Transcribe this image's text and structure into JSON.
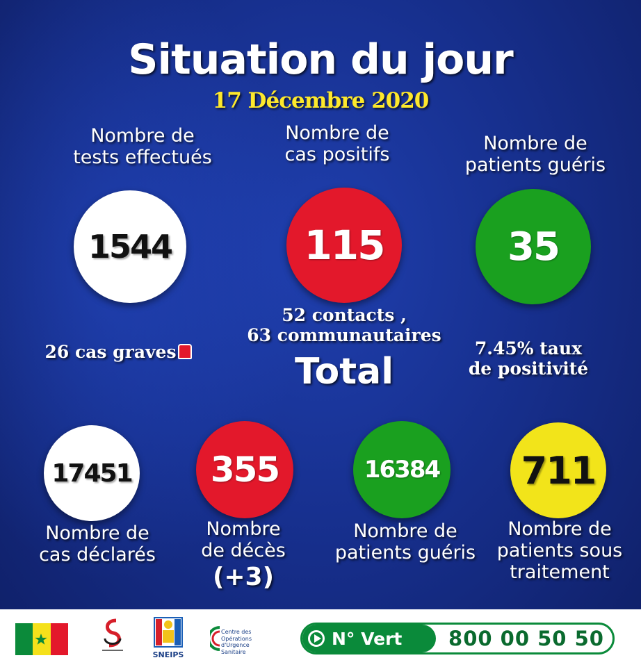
{
  "header": {
    "title": "Situation du jour",
    "date": "17 Décembre 2020"
  },
  "daily": {
    "tests": {
      "label_line1": "Nombre de",
      "label_line2": "tests effectués",
      "value": "1544"
    },
    "positive": {
      "label_line1": "Nombre de",
      "label_line2": "cas positifs",
      "value": "115",
      "detail_line1": "52 contacts ,",
      "detail_line2": "63 communautaires"
    },
    "recovered": {
      "label_line1": "Nombre de",
      "label_line2": "patients guéris",
      "value": "35"
    },
    "serious": "26 cas graves",
    "positivity_line1": "7.45% taux",
    "positivity_line2": "de positivité"
  },
  "total": {
    "heading": "Total",
    "declared": {
      "value": "17451",
      "label_line1": "Nombre de",
      "label_line2": "cas déclarés"
    },
    "deaths": {
      "value": "355",
      "label_line1": "Nombre",
      "label_line2": "de décès",
      "delta": "(+3)"
    },
    "recovered": {
      "value": "16384",
      "label_line1": "Nombre de",
      "label_line2": "patients guéris"
    },
    "treatment": {
      "value": "711",
      "label_line1": "Nombre de",
      "label_line2": "patients sous",
      "label_line3": "traitement"
    }
  },
  "footer": {
    "sneips": "SNEIPS",
    "cous_line1": "Centre des Opérations",
    "cous_line2": "d'Urgence Sanitaire",
    "hotline_label": "N° Vert",
    "hotline_number": "800 00 50 50"
  },
  "colors": {
    "background": "#17308f",
    "red": "#e3182b",
    "green": "#1aa01f",
    "yellow": "#f2e41a",
    "date": "#fde82c"
  },
  "icons": [
    "alarm-icon",
    "play-icon",
    "senegal-flag",
    "ministry-logo",
    "sneips-logo",
    "cous-logo"
  ]
}
